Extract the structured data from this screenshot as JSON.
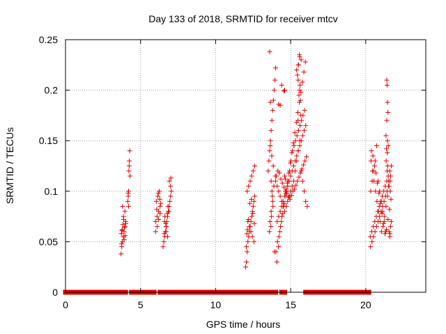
{
  "colors": {
    "series": "#e00000",
    "grid": "#a0a0a0",
    "frame": "#000000",
    "background": "#ffffff"
  },
  "chart_data": {
    "type": "scatter",
    "title": "Day 133 of 2018, SRMTID for receiver mtcv",
    "xlabel": "GPS time / hours",
    "ylabel": "SRMTID / TECUs",
    "xlim": [
      0,
      24
    ],
    "ylim": [
      0,
      0.25
    ],
    "xticks": [
      0,
      5,
      10,
      15,
      20
    ],
    "yticks": [
      0,
      0.05,
      0.1,
      0.15,
      0.2,
      0.25
    ],
    "ytick_labels": [
      "0",
      "0.05",
      "0.1",
      "0.15",
      "0.2",
      "0.25"
    ],
    "grid": true,
    "marker": "+",
    "series": [
      {
        "name": "SRMTID (mtcv)",
        "x": [
          3.7,
          3.75,
          3.8,
          3.85,
          3.9,
          3.95,
          4.0,
          3.72,
          3.78,
          3.82,
          3.88,
          3.92,
          3.98,
          3.74,
          3.86,
          3.96,
          3.8,
          3.9,
          4.02,
          3.76,
          4.15,
          4.18,
          4.2,
          4.22,
          4.25,
          4.28,
          4.2,
          4.17,
          4.24,
          4.3,
          6.0,
          6.1,
          6.2,
          6.3,
          6.05,
          6.15,
          6.25,
          6.1,
          6.2,
          6.3,
          6.35,
          6.0,
          6.08,
          6.18,
          6.28,
          6.5,
          6.55,
          6.6,
          6.65,
          6.7,
          6.75,
          6.8,
          6.85,
          6.9,
          6.95,
          7.0,
          7.05,
          6.6,
          6.7,
          6.8,
          6.9,
          7.0,
          6.62,
          6.72,
          6.82,
          6.92,
          7.02,
          6.58,
          6.68,
          6.78,
          12.0,
          12.05,
          12.1,
          12.15,
          12.2,
          12.25,
          12.3,
          12.35,
          12.4,
          12.45,
          12.5,
          12.55,
          12.6,
          12.1,
          12.2,
          12.3,
          12.4,
          12.5,
          12.6,
          12.15,
          12.25,
          12.35,
          12.45,
          12.55,
          12.05,
          12.08,
          12.18,
          12.28,
          12.38,
          12.48,
          12.58,
          12.12,
          13.5,
          13.55,
          13.6,
          13.65,
          13.7,
          13.75,
          13.8,
          13.85,
          13.9,
          13.95,
          14.0,
          13.6,
          13.65,
          13.7,
          13.75,
          13.8,
          13.7,
          13.62,
          13.72,
          13.82,
          13.92,
          13.58,
          13.68,
          13.78,
          13.88,
          13.98,
          13.64,
          13.74,
          13.84,
          14.0,
          14.1,
          14.2,
          14.3,
          14.4,
          14.5,
          14.6,
          14.7,
          14.8,
          14.9,
          15.0,
          15.1,
          15.2,
          15.3,
          15.4,
          15.5,
          15.6,
          15.7,
          15.8,
          15.9,
          16.0,
          16.1,
          14.05,
          14.15,
          14.25,
          14.35,
          14.45,
          14.55,
          14.65,
          14.75,
          14.85,
          14.95,
          15.05,
          15.15,
          15.25,
          15.35,
          15.45,
          15.55,
          15.65,
          15.75,
          15.85,
          15.95,
          16.05,
          14.1,
          14.2,
          14.3,
          14.4,
          14.5,
          14.6,
          14.7,
          14.8,
          14.9,
          15.0,
          15.1,
          15.2,
          15.3,
          15.4,
          15.5,
          15.6,
          15.7,
          15.8,
          15.9,
          16.0,
          14.02,
          14.12,
          14.22,
          14.32,
          14.42,
          14.52,
          14.62,
          14.72,
          14.82,
          14.92,
          15.02,
          15.12,
          15.22,
          15.32,
          15.42,
          15.52,
          15.62,
          15.72,
          15.82,
          15.92,
          14.08,
          14.18,
          14.28,
          14.38,
          14.48,
          14.58,
          14.68,
          14.78,
          14.88,
          14.98,
          15.08,
          15.18,
          15.28,
          15.38,
          15.48,
          15.58,
          15.68,
          15.78,
          15.88,
          15.98,
          14.3,
          14.2,
          14.4,
          14.6,
          14.55,
          14.7,
          15.4,
          15.5,
          15.6,
          15.55,
          15.65,
          15.45,
          15.6,
          15.7,
          15.5,
          15.62,
          15.52,
          15.58,
          15.68,
          15.48,
          14.6,
          14.65,
          20.3,
          20.4,
          20.5,
          20.6,
          20.7,
          20.8,
          20.9,
          21.0,
          21.1,
          21.2,
          21.3,
          21.4,
          21.5,
          21.6,
          21.7,
          20.35,
          20.45,
          20.55,
          20.65,
          20.75,
          20.85,
          20.95,
          21.05,
          21.15,
          21.25,
          21.35,
          21.45,
          21.55,
          21.65,
          20.32,
          20.42,
          20.52,
          20.62,
          20.72,
          20.82,
          20.92,
          21.02,
          21.12,
          21.22,
          21.32,
          21.42,
          21.52,
          21.62,
          20.38,
          20.48,
          20.58,
          20.68,
          20.78,
          20.88,
          20.98,
          21.08,
          21.18,
          21.28,
          21.38,
          21.48,
          21.58,
          21.68,
          20.33,
          20.43,
          20.53,
          20.63,
          20.73,
          20.83,
          20.93,
          21.03,
          21.13,
          21.23,
          21.33,
          21.43,
          21.53,
          21.63,
          21.4,
          21.42,
          21.45,
          21.48,
          21.4,
          21.45,
          21.5,
          21.35,
          21.38,
          21.44,
          21.36,
          21.46,
          21.55,
          21.6,
          21.62,
          21.65,
          21.7
        ],
        "y": [
          0.038,
          0.045,
          0.05,
          0.055,
          0.06,
          0.065,
          0.07,
          0.058,
          0.062,
          0.067,
          0.072,
          0.064,
          0.056,
          0.048,
          0.075,
          0.08,
          0.085,
          0.052,
          0.068,
          0.061,
          0.09,
          0.095,
          0.1,
          0.12,
          0.13,
          0.14,
          0.085,
          0.098,
          0.125,
          0.115,
          0.07,
          0.075,
          0.08,
          0.085,
          0.09,
          0.095,
          0.1,
          0.065,
          0.072,
          0.078,
          0.088,
          0.06,
          0.082,
          0.098,
          0.092,
          0.045,
          0.05,
          0.055,
          0.06,
          0.065,
          0.07,
          0.075,
          0.08,
          0.085,
          0.09,
          0.095,
          0.1,
          0.07,
          0.06,
          0.055,
          0.08,
          0.105,
          0.075,
          0.065,
          0.085,
          0.11,
          0.113,
          0.058,
          0.068,
          0.078,
          0.025,
          0.03,
          0.04,
          0.05,
          0.055,
          0.06,
          0.065,
          0.07,
          0.075,
          0.08,
          0.085,
          0.09,
          0.095,
          0.1,
          0.105,
          0.11,
          0.115,
          0.12,
          0.125,
          0.07,
          0.065,
          0.06,
          0.055,
          0.05,
          0.045,
          0.058,
          0.072,
          0.088,
          0.092,
          0.078,
          0.068,
          0.062,
          0.12,
          0.13,
          0.14,
          0.15,
          0.16,
          0.17,
          0.18,
          0.19,
          0.2,
          0.21,
          0.222,
          0.238,
          0.188,
          0.11,
          0.1,
          0.09,
          0.08,
          0.07,
          0.075,
          0.085,
          0.04,
          0.06,
          0.065,
          0.095,
          0.105,
          0.115,
          0.145,
          0.135,
          0.125,
          0.11,
          0.105,
          0.1,
          0.095,
          0.09,
          0.085,
          0.08,
          0.085,
          0.09,
          0.095,
          0.1,
          0.105,
          0.11,
          0.12,
          0.13,
          0.14,
          0.15,
          0.12,
          0.11,
          0.1,
          0.09,
          0.085,
          0.115,
          0.12,
          0.118,
          0.112,
          0.108,
          0.104,
          0.1,
          0.098,
          0.094,
          0.092,
          0.096,
          0.1,
          0.102,
          0.106,
          0.11,
          0.114,
          0.118,
          0.122,
          0.126,
          0.13,
          0.134,
          0.07,
          0.075,
          0.08,
          0.085,
          0.09,
          0.095,
          0.1,
          0.105,
          0.11,
          0.115,
          0.12,
          0.125,
          0.13,
          0.135,
          0.14,
          0.145,
          0.15,
          0.155,
          0.16,
          0.165,
          0.04,
          0.05,
          0.055,
          0.065,
          0.075,
          0.085,
          0.095,
          0.1,
          0.11,
          0.12,
          0.13,
          0.14,
          0.145,
          0.15,
          0.155,
          0.16,
          0.165,
          0.17,
          0.175,
          0.18,
          0.03,
          0.045,
          0.06,
          0.07,
          0.078,
          0.088,
          0.098,
          0.108,
          0.118,
          0.128,
          0.138,
          0.148,
          0.158,
          0.168,
          0.178,
          0.188,
          0.198,
          0.208,
          0.218,
          0.228,
          0.185,
          0.186,
          0.205,
          0.2,
          0.199,
          0.102,
          0.22,
          0.225,
          0.2,
          0.195,
          0.19,
          0.215,
          0.233,
          0.23,
          0.21,
          0.205,
          0.225,
          0.235,
          0.175,
          0.17,
          0.115,
          0.112,
          0.055,
          0.06,
          0.065,
          0.07,
          0.075,
          0.08,
          0.085,
          0.09,
          0.095,
          0.1,
          0.105,
          0.11,
          0.115,
          0.12,
          0.125,
          0.13,
          0.12,
          0.11,
          0.1,
          0.09,
          0.08,
          0.07,
          0.06,
          0.065,
          0.075,
          0.085,
          0.095,
          0.105,
          0.115,
          0.045,
          0.05,
          0.055,
          0.06,
          0.065,
          0.07,
          0.075,
          0.08,
          0.085,
          0.09,
          0.095,
          0.1,
          0.105,
          0.11,
          0.14,
          0.135,
          0.125,
          0.118,
          0.108,
          0.098,
          0.088,
          0.078,
          0.068,
          0.058,
          0.062,
          0.072,
          0.082,
          0.092,
          0.1,
          0.11,
          0.12,
          0.13,
          0.145,
          0.11,
          0.1,
          0.09,
          0.08,
          0.07,
          0.06,
          0.12,
          0.11,
          0.1,
          0.21,
          0.205,
          0.188,
          0.178,
          0.17,
          0.15,
          0.145,
          0.155,
          0.142,
          0.138,
          0.13,
          0.125,
          0.06,
          0.055,
          0.058,
          0.065,
          0.07
        ]
      },
      {
        "name": "zero baseline",
        "x_ranges": [
          [
            0,
            3.6
          ],
          [
            3.9,
            4.0
          ],
          [
            4.4,
            5.9
          ],
          [
            6.3,
            6.5
          ],
          [
            6.8,
            7.0
          ],
          [
            7.2,
            12.2
          ],
          [
            12.5,
            12.7
          ],
          [
            12.9,
            14.0
          ],
          [
            14.4,
            14.6
          ],
          [
            16.0,
            17.8
          ],
          [
            18.0,
            20.2
          ]
        ],
        "y": 0
      }
    ]
  }
}
